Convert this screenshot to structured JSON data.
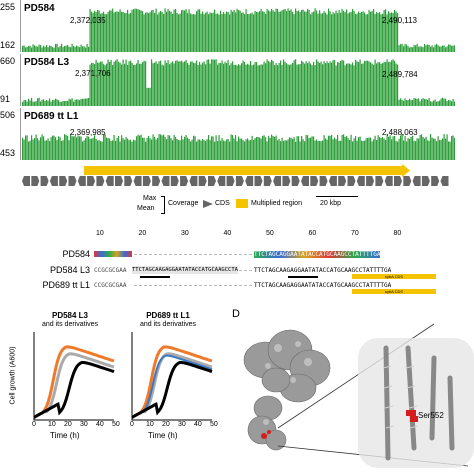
{
  "panel_a": {
    "tracks": [
      {
        "name": "PD584",
        "ymax": "255",
        "ymin": "162",
        "start": "2,372,035",
        "end": "2,490,113",
        "level": 0.72
      },
      {
        "name": "PD584 L3",
        "ymax": "660",
        "ymin": "91",
        "start": "2,371,706",
        "end": "2,489,784",
        "level": 0.78
      },
      {
        "name": "PD689 tt L1",
        "ymax": "506",
        "ymin": "453",
        "start": "2,369,985",
        "end": "2,488,063",
        "level": 0.35
      }
    ],
    "legend": {
      "max": "Max",
      "mean": "Mean",
      "coverage": "Coverage",
      "cds": "CDS",
      "multiplied": "Multiplied region",
      "scale": "20 kbp"
    },
    "colors": {
      "coverage": "#2e9e3a",
      "multiplied": "#f5c400",
      "cds": "#666666"
    }
  },
  "panel_b": {
    "ticks": [
      "10",
      "20",
      "30",
      "40",
      "50",
      "60",
      "70",
      "80"
    ],
    "rows": [
      {
        "label": "PD584",
        "left": "",
        "right": "TTCTAGCAGGAATATACCATGCAAGCCTATTTTGA"
      },
      {
        "label": "PD584 L3",
        "left": "CCGCGCGAA",
        "mid": "TTCTAGCAAGAGGAATATACCATGCAAGCCTA",
        "right": "TTCTAGCAAGAGGAATATACCATGCAAGCCTATTTTGA"
      },
      {
        "label": "PD689 tt L1",
        "left": "CCGCGCGAA",
        "right": "TTCTAGCAAGAGGAATATACCATGCAAGCCTATTTTGA"
      }
    ],
    "atg": "ATG",
    "cds_label": "sybA CDS"
  },
  "panel_c": {
    "ylabel": "Cell growth (A600)",
    "xlabel": "Time (h)",
    "charts": [
      {
        "title": "PD584 L3",
        "subtitle": "and its derivatives",
        "xticks": [
          "0",
          "10",
          "20",
          "30",
          "40",
          "50"
        ]
      },
      {
        "title": "PD689 tt L1",
        "subtitle": "and its derivatives",
        "xticks": [
          "0",
          "10",
          "20",
          "30",
          "40",
          "50"
        ]
      }
    ],
    "series_colors": [
      "#f07a2a",
      "#aaaaaa",
      "#3a78c4",
      "#000000"
    ]
  },
  "panel_d": {
    "letter": "D",
    "residue": "Ser552"
  }
}
